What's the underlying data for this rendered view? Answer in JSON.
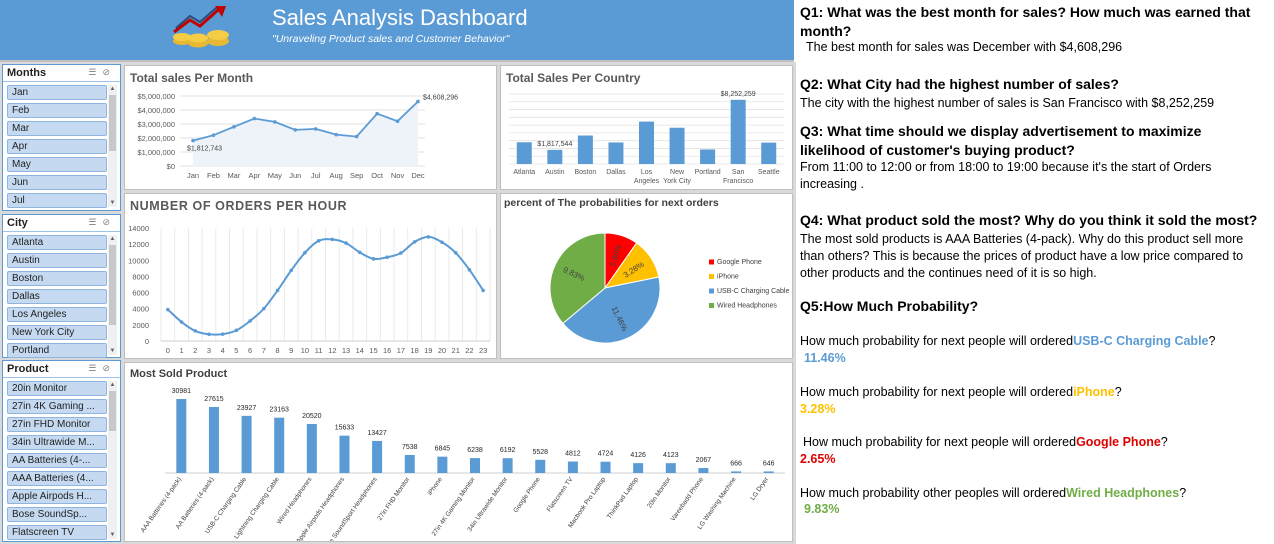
{
  "header": {
    "title": "Sales Analysis Dashboard",
    "subtitle": "\"Unraveling Product sales  and Customer Behavior\""
  },
  "slicers": {
    "months": {
      "title": "Months",
      "items": [
        "Jan",
        "Feb",
        "Mar",
        "Apr",
        "May",
        "Jun",
        "Jul"
      ]
    },
    "city": {
      "title": "City",
      "items": [
        "Atlanta",
        "Austin",
        "Boston",
        "Dallas",
        "Los Angeles",
        "New York City",
        "Portland"
      ]
    },
    "product": {
      "title": "Product",
      "items": [
        "20in Monitor",
        "27in 4K Gaming ...",
        "27in FHD Monitor",
        "34in Ultrawide M...",
        "AA Batteries (4-...",
        "AAA Batteries (4...",
        "Apple Airpods H...",
        "Bose SoundSp...",
        "Flatscreen TV"
      ]
    }
  },
  "icons": {
    "multi_select": "multi-select-icon",
    "clear_filter": "clear-filter-icon",
    "logo": "money-growth-logo"
  },
  "colors": {
    "header": "#5b9bd5",
    "series": "#5b9bd5",
    "google": "#ff0000",
    "iphone": "#ffc000",
    "usbc": "#5b9bd5",
    "wired": "#70ad47"
  },
  "chart_data": [
    {
      "type": "line",
      "title": "Total sales Per Month",
      "categories": [
        "Jan",
        "Feb",
        "Mar",
        "Apr",
        "May",
        "Jun",
        "Jul",
        "Aug",
        "Sep",
        "Oct",
        "Nov",
        "Dec"
      ],
      "values": [
        1812743,
        2200000,
        2800000,
        3390000,
        3150000,
        2580000,
        2650000,
        2240000,
        2100000,
        3740000,
        3200000,
        4608296
      ],
      "ylim": [
        0,
        5000000
      ],
      "yticks": [
        "$0",
        "$1,000,000",
        "$2,000,000",
        "$3,000,000",
        "$4,000,000",
        "$5,000,000"
      ],
      "data_labels": {
        "first": "$1,812,743",
        "last": "$4,608,296"
      },
      "grid": true
    },
    {
      "type": "bar",
      "title": "Total Sales Per Country",
      "categories": [
        "Atlanta",
        "Austin",
        "Boston",
        "Dallas",
        "Los Angeles",
        "New York City",
        "Portland",
        "San Francisco",
        "Seattle"
      ],
      "values": [
        2795499,
        1817544,
        3661642,
        2767975,
        5452570,
        4664317,
        1870732,
        8252259,
        2747755
      ],
      "data_labels": {
        "Austin": "$1,817,544",
        "San Francisco": "$8,252,259"
      },
      "grid": true
    },
    {
      "type": "line",
      "title": "NUMBER OF ORDERS PER HOUR",
      "x": [
        0,
        1,
        2,
        3,
        4,
        5,
        6,
        7,
        8,
        9,
        10,
        11,
        12,
        13,
        14,
        15,
        16,
        17,
        18,
        19,
        20,
        21,
        22,
        23
      ],
      "values": [
        3900,
        2350,
        1250,
        830,
        850,
        1320,
        2480,
        4010,
        6260,
        8750,
        10940,
        12410,
        12590,
        12130,
        10980,
        10180,
        10380,
        10900,
        12280,
        12900,
        12230,
        10920,
        8820,
        6270
      ],
      "ylim": [
        0,
        14000
      ],
      "yticks": [
        "0",
        "2000",
        "4000",
        "6000",
        "8000",
        "10000",
        "12000",
        "14000"
      ],
      "grid": true
    },
    {
      "type": "pie",
      "title": "percent of The probabilities for next orders",
      "labels": [
        "Google Phone",
        "iPhone",
        "USB-C Charging Cable",
        "Wired Headphones"
      ],
      "values": [
        2.65,
        3.28,
        11.46,
        9.83
      ],
      "slice_labels": [
        "2.65%",
        "3.28%",
        "11.46%",
        "9.83%"
      ],
      "legend": "right"
    },
    {
      "type": "bar",
      "title": "Most Sold Product",
      "categories": [
        "AAA Batteries (4-pack)",
        "AA Batteries (4-pack)",
        "USB-C Charging Cable",
        "Lightning Charging Cable",
        "Wired Headphones",
        "Apple Airpods Headphones",
        "Bose SoundSport Headphones",
        "27in FHD Monitor",
        "iPhone",
        "27in 4K Gaming Monitor",
        "34in Ultrawide Monitor",
        "Google Phone",
        "Flatscreen TV",
        "Macbook Pro Laptop",
        "ThinkPad Laptop",
        "20in Monitor",
        "Vareebadd Phone",
        "LG Washing Machine",
        "LG Dryer"
      ],
      "values": [
        30981,
        27615,
        23927,
        23163,
        20520,
        15633,
        13427,
        7538,
        6845,
        6238,
        6192,
        5528,
        4812,
        4724,
        4126,
        4123,
        2067,
        666,
        646
      ],
      "data_labels": [
        "30981",
        "27615",
        "23927",
        "23163",
        "20520",
        "15633",
        "13427",
        "7538",
        "6845",
        "6238",
        "6192",
        "5528",
        "4812",
        "4724",
        "4126",
        "4123",
        "2067",
        "666",
        "646"
      ],
      "grid": false
    }
  ],
  "qa": {
    "q1": "Q1: What was the best month for sales? How much was earned that month?",
    "a1": "The best month for sales was December with $4,608,296",
    "q2": "Q2: What City had the highest number of sales?",
    "a2": "The city with the highest number of sales is San Francisco with $8,252,259",
    "q3": "Q3: What time should we display advertisement to maximize likelihood of customer's buying product?",
    "a3": "From 11:00  to 12:00 or from 18:00 to 19:00  because it's the start of Orders increasing  .",
    "q4": "Q4: What product sold the most? Why do you think it sold the most?",
    "a4": "The most sold products is AAA Batteries (4-pack). Why do this product sell more than others? This is because the prices of product have a low price compared to other products and the continues need of it is so high.",
    "q5": "Q5:How Much Probability?",
    "p_prefix": "How much probability for next people will ordered",
    "p_prefix_other": "How much probability other peoples will ordered",
    "p_items": [
      {
        "product": "USB-C Charging Cable",
        "value": "11.46%"
      },
      {
        "product": "iPhone",
        "value": "3.28%"
      },
      {
        "product": "Google Phone",
        "value": "2.65%"
      },
      {
        "product": "Wired Headphones",
        "value": "9.83%"
      }
    ]
  }
}
